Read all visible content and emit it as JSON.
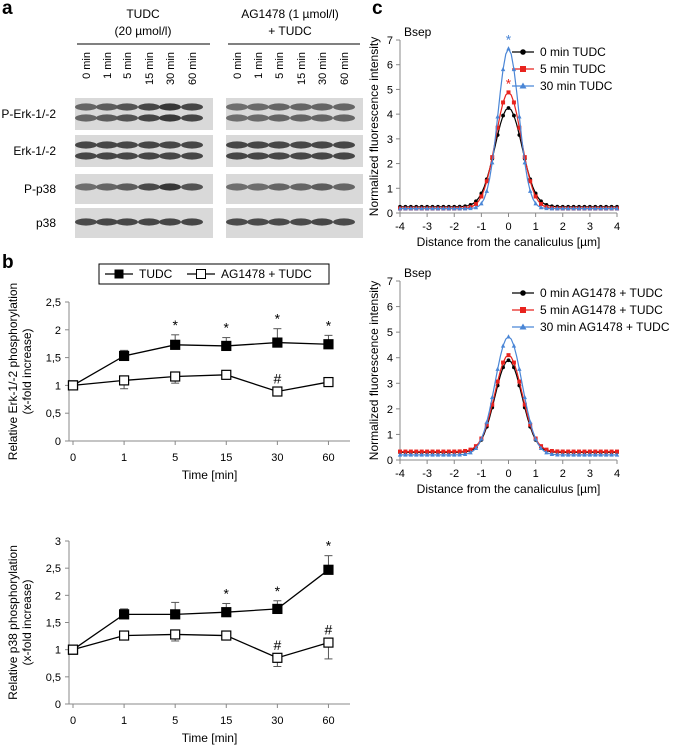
{
  "panel_labels": {
    "a": "a",
    "b": "b",
    "c": "c"
  },
  "blot": {
    "group1_title": [
      "TUDC",
      "(20 µmol/l)"
    ],
    "group2_title": [
      "AG1478 (1 µmol/l)",
      "+ TUDC"
    ],
    "lane_labels": [
      "0 min",
      "1 min",
      "5 min",
      "15 min",
      "30 min",
      "60 min"
    ],
    "rows": [
      "P-Erk-1/-2",
      "Erk-1/-2",
      "P-p38",
      "p38"
    ]
  },
  "chart_data": [
    {
      "id": "erk",
      "type": "line",
      "ylabel": [
        "Relative Erk-1/-2 phosphorylation",
        "(x-fold increase)"
      ],
      "xlabel": "Time [min]",
      "categories": [
        "0",
        "1",
        "5",
        "15",
        "30",
        "60"
      ],
      "ylim": [
        0,
        2.5
      ],
      "yticks": [
        "0",
        "0,5",
        "1",
        "1,5",
        "2",
        "2,5"
      ],
      "legend": [
        "TUDC",
        "AG1478 + TUDC"
      ],
      "series": [
        {
          "name": "TUDC",
          "values": [
            1.0,
            1.53,
            1.73,
            1.71,
            1.77,
            1.74
          ],
          "errors": [
            0.03,
            0.1,
            0.18,
            0.15,
            0.25,
            0.16
          ],
          "labels": [
            "",
            "",
            "*",
            "*",
            "*",
            "*"
          ]
        },
        {
          "name": "AG1478 + TUDC",
          "values": [
            1.0,
            1.09,
            1.16,
            1.19,
            0.89,
            1.06
          ],
          "errors": [
            0.03,
            0.15,
            0.12,
            0.03,
            0.04,
            0.06
          ],
          "labels": [
            "",
            "",
            "",
            "",
            "#",
            ""
          ]
        }
      ]
    },
    {
      "id": "p38",
      "type": "line",
      "ylabel": [
        "Relative p38 phosphorylation",
        "(x-fold increase)"
      ],
      "xlabel": "Time [min]",
      "categories": [
        "0",
        "1",
        "5",
        "15",
        "30",
        "60"
      ],
      "ylim": [
        0,
        3
      ],
      "yticks": [
        "0",
        "0,5",
        "1",
        "1,5",
        "2",
        "2,5",
        "3"
      ],
      "series": [
        {
          "name": "TUDC",
          "values": [
            1.0,
            1.65,
            1.65,
            1.69,
            1.75,
            2.47
          ],
          "errors": [
            0.03,
            0.1,
            0.22,
            0.16,
            0.15,
            0.26
          ],
          "labels": [
            "",
            "",
            "",
            "*",
            "*",
            "*"
          ]
        },
        {
          "name": "AG1478 + TUDC",
          "values": [
            1.0,
            1.26,
            1.28,
            1.26,
            0.85,
            1.13
          ],
          "errors": [
            0.03,
            0.06,
            0.12,
            0.08,
            0.16,
            0.3
          ],
          "labels": [
            "",
            "",
            "",
            "",
            "#",
            "#"
          ]
        }
      ]
    },
    {
      "id": "bsep-tudc",
      "type": "line",
      "title": "Bsep",
      "ylabel": "Normalized fluorescence intensity",
      "xlabel": "Distance from the canaliculus [µm]",
      "xlim": [
        -4,
        4
      ],
      "ylim": [
        0,
        7
      ],
      "xticks": [
        "-4",
        "-3",
        "-2",
        "-1",
        "0",
        "1",
        "2",
        "3",
        "4"
      ],
      "yticks": [
        "0",
        "1",
        "2",
        "3",
        "4",
        "5",
        "6",
        "7"
      ],
      "series": [
        {
          "name": "0 min TUDC",
          "color": "#000000",
          "peak": 4.25,
          "base": 0.25,
          "sigma": 0.5,
          "star": ""
        },
        {
          "name": "5 min TUDC",
          "color": "#e8231e",
          "peak": 4.88,
          "base": 0.18,
          "sigma": 0.47,
          "star": "*"
        },
        {
          "name": "30 min TUDC",
          "color": "#4a86d6",
          "peak": 6.65,
          "base": 0.18,
          "sigma": 0.38,
          "star": "*"
        }
      ]
    },
    {
      "id": "bsep-ag",
      "type": "line",
      "title": "Bsep",
      "ylabel": "Normalized fluorescence intensity",
      "xlabel": "Distance from the canaliculus [µm]",
      "xlim": [
        -4,
        4
      ],
      "ylim": [
        0,
        7
      ],
      "xticks": [
        "-4",
        "-3",
        "-2",
        "-1",
        "0",
        "1",
        "2",
        "3",
        "4"
      ],
      "yticks": [
        "0",
        "1",
        "2",
        "3",
        "4",
        "5",
        "6",
        "7"
      ],
      "series": [
        {
          "name": "0 min AG1478 + TUDC",
          "color": "#000000",
          "peak": 3.9,
          "base": 0.3,
          "sigma": 0.5,
          "star": ""
        },
        {
          "name": "5 min AG1478 + TUDC",
          "color": "#e8231e",
          "peak": 4.1,
          "base": 0.33,
          "sigma": 0.5,
          "star": ""
        },
        {
          "name": "30 min AG1478 + TUDC",
          "color": "#4a86d6",
          "peak": 4.82,
          "base": 0.2,
          "sigma": 0.5,
          "star": ""
        }
      ]
    }
  ]
}
